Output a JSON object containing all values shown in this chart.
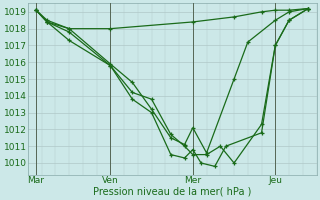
{
  "xlabel": "Pression niveau de la mer( hPa )",
  "bg_color": "#cce8e8",
  "grid_color": "#b0c8c8",
  "line_color": "#1a6b1a",
  "vline_color": "#556655",
  "ylim": [
    1009.3,
    1019.5
  ],
  "xlim": [
    0,
    10.5
  ],
  "xtick_labels": [
    "Mar",
    "Ven",
    "Mer",
    "Jeu"
  ],
  "xtick_positions": [
    0.3,
    3.0,
    6.0,
    9.0
  ],
  "vline_positions": [
    0.3,
    3.0,
    6.0,
    9.0
  ],
  "ytick_positions": [
    1010,
    1011,
    1012,
    1013,
    1014,
    1015,
    1016,
    1017,
    1018,
    1019
  ],
  "series": [
    {
      "x": [
        0.3,
        0.7,
        1.5,
        3.0,
        6.0,
        7.5,
        8.5,
        9.0,
        9.5,
        10.2
      ],
      "y": [
        1019.1,
        1018.5,
        1018.0,
        1018.0,
        1018.4,
        1018.7,
        1019.0,
        1019.1,
        1019.1,
        1019.2
      ]
    },
    {
      "x": [
        0.3,
        0.7,
        1.5,
        3.0,
        3.8,
        4.5,
        5.2,
        5.7,
        6.0,
        6.5,
        7.5,
        8.0,
        9.0,
        9.5,
        10.2
      ],
      "y": [
        1019.1,
        1018.4,
        1018.0,
        1015.9,
        1014.8,
        1013.2,
        1011.5,
        1011.1,
        1012.1,
        1010.6,
        1015.0,
        1017.2,
        1018.5,
        1019.0,
        1019.2
      ]
    },
    {
      "x": [
        0.3,
        0.7,
        1.5,
        3.0,
        3.8,
        4.5,
        5.2,
        5.7,
        6.0,
        6.5,
        7.0,
        7.5,
        8.5,
        9.0,
        9.5,
        10.2
      ],
      "y": [
        1019.1,
        1018.4,
        1017.8,
        1015.8,
        1014.2,
        1013.8,
        1011.7,
        1011.0,
        1010.5,
        1010.5,
        1011.0,
        1010.0,
        1012.3,
        1017.0,
        1018.5,
        1019.2
      ]
    },
    {
      "x": [
        0.3,
        0.7,
        1.5,
        3.0,
        3.8,
        4.5,
        5.2,
        5.7,
        6.0,
        6.3,
        6.8,
        7.2,
        8.5,
        9.0,
        9.5,
        10.2
      ],
      "y": [
        1019.1,
        1018.4,
        1017.3,
        1015.8,
        1013.8,
        1013.0,
        1010.5,
        1010.3,
        1010.8,
        1010.0,
        1009.8,
        1011.0,
        1011.8,
        1017.0,
        1018.5,
        1019.2
      ]
    }
  ]
}
